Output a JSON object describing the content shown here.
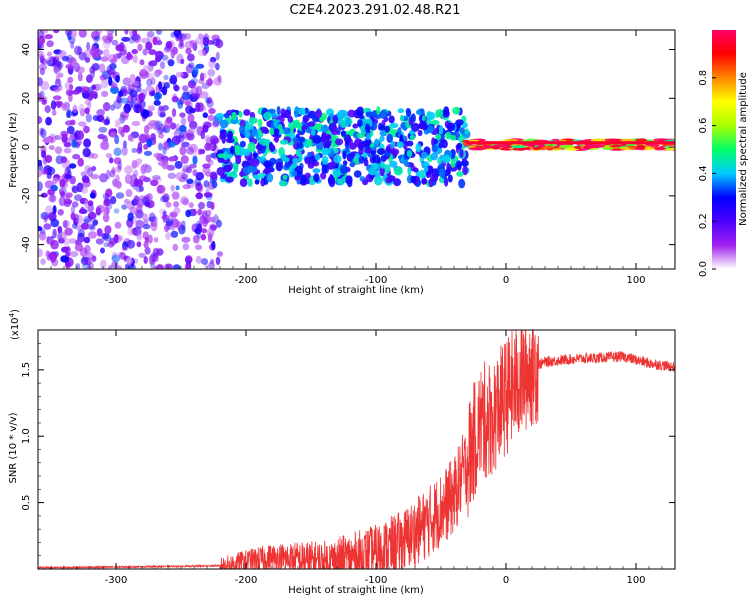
{
  "title": "C2E4.2023.291.02.48.R21",
  "colors": {
    "snr_line": "#ee3333",
    "frame": "#000000"
  },
  "chart_data": [
    {
      "type": "heatmap",
      "xlabel": "Height of straight line (km)",
      "ylabel": "Frequency (Hz)",
      "xlim": [
        -360,
        130
      ],
      "ylim": [
        -50,
        48
      ],
      "x_ticks": [
        -300,
        -200,
        -100,
        0,
        100
      ],
      "y_ticks": [
        -40,
        -20,
        0,
        20,
        40
      ],
      "colorbar": {
        "label": "Normalized spectral amplitude",
        "range": [
          0,
          1
        ],
        "ticks": [
          "0.0",
          "0.2",
          "0.4",
          "0.6",
          "0.8"
        ],
        "stops": [
          "#ffffff",
          "#a020f0",
          "#4b00ff",
          "#0000ff",
          "#00ccff",
          "#00ff66",
          "#aaff00",
          "#ffff00",
          "#ff8800",
          "#ff0000",
          "#ff0066"
        ]
      },
      "regions": [
        {
          "x": [
            -360,
            -220
          ],
          "band_hz": [
            -50,
            48
          ],
          "amplitude": 0.15
        },
        {
          "x": [
            -220,
            -30
          ],
          "band_hz": [
            -15,
            15
          ],
          "amplitude": 0.35
        },
        {
          "x": [
            -30,
            130
          ],
          "band_hz": [
            -1,
            3
          ],
          "amplitude": 0.9
        }
      ]
    },
    {
      "type": "line",
      "xlabel": "Height of straight line (km)",
      "ylabel": "SNR (10 * v/v)",
      "y_multiplier": "(x10",
      "y_multiplier_exp": "4",
      "y_multiplier_close": ")",
      "xlim": [
        -360,
        130
      ],
      "ylim": [
        0,
        1.8
      ],
      "x_ticks": [
        -300,
        -200,
        -100,
        0,
        100
      ],
      "y_ticks": [
        0.5,
        1.0,
        1.5
      ],
      "y_tick_labels": [
        "0.5",
        "1.0",
        "1.5"
      ],
      "series": [
        {
          "x": [
            -360,
            -300,
            -250,
            -220,
            -200,
            -180,
            -160,
            -140,
            -120,
            -100,
            -80,
            -60,
            -40,
            -30,
            -20,
            -10,
            0,
            10,
            20,
            30,
            50,
            70,
            90,
            110,
            130
          ],
          "values": [
            0.01,
            0.015,
            0.02,
            0.025,
            0.06,
            0.08,
            0.07,
            0.05,
            0.08,
            0.12,
            0.2,
            0.35,
            0.55,
            0.8,
            1.1,
            1.15,
            1.3,
            1.42,
            1.52,
            1.56,
            1.58,
            1.59,
            1.6,
            1.55,
            1.52
          ]
        }
      ]
    }
  ]
}
